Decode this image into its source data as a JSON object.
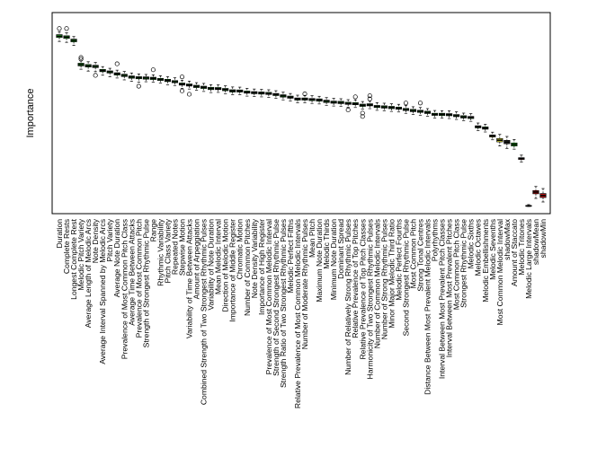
{
  "chart_data": {
    "type": "boxplot",
    "title": "",
    "xlabel": "",
    "ylabel": "Importance",
    "ylim": [
      0,
      100
    ],
    "grid": false,
    "legend": "none",
    "colors": {
      "confirmed": "#22dd22",
      "tentative": "#f2f23a",
      "rejected": "#cc1111",
      "shadow": "#333333"
    },
    "categories": [
      "Duration",
      "Complete Rests",
      "Longest Complete Rest",
      "Melodic Pitch Variety",
      "Average Length of Melodic Arcs",
      "Note Density",
      "Average Interval Spanned by Melodic Arcs",
      "Pitch Variety",
      "Average Note Duration",
      "Prevalence of Most Common Pitch Class",
      "Average Time Between Attacks",
      "Prevalence of Most Common Pitch",
      "Strength of Strongest Rhythmic Pulse",
      "Range",
      "Rhythmic Variability",
      "Pitch Class Variety",
      "Repeated Notes",
      "Stepwise Motion",
      "Variability of Time Between Attacks",
      "Amount of Arpeggiation",
      "Combined Strength of Two Strongest Rhythmic Pulses",
      "Variability of Note Duration",
      "Mean Melodic Interval",
      "Direction of Melodic Motion",
      "Importance of Middle Register",
      "Chromatic Motion",
      "Number of Common Pitches",
      "Note Density Variability",
      "Importance of High Register",
      "Prevalence of Most Common Melodic Interval",
      "Strength of Second Strongest Rhythmic Pulse",
      "Strength Ratio of Two Strongest Rhythmic Pulses",
      "Melodic Perfect Fifths",
      "Relative Prevalence of Most Common Melodic Intervals",
      "Number of Moderate Rhythmic Pulses",
      "Mean Pitch",
      "Maximum Note Duration",
      "Melodic Thirds",
      "Minimum Note Duration",
      "Dominant Spread",
      "Number of Relatively Strong Rhythmic Pulses",
      "Relative Prevalence of Top Pitches",
      "Relative Prevalence of Top Pitch Classes",
      "Harmonicity of Two Strongest Rhythmic Pulses",
      "Number of Common Melodic Intervals",
      "Number of Strong Rhythmic Pulses",
      "Minor Major Melodic Third Ratio",
      "Melodic Perfect Fourths",
      "Second Strongest Rhythmic Pulse",
      "Most Common Pitch",
      "Strong Tonal Centres",
      "Distance Between Most Prevalent Melodic Intervals",
      "Polyrhythms",
      "Interval Between Most Prevalent Pitch Classes",
      "Interval Between Most Prevalent Pitches",
      "Most Common Pitch Class",
      "Strongest Rhythmic Pulse",
      "Melodic Sixths",
      "Melodic Octaves",
      "Melodic Embellishments",
      "Melodic Sevenths",
      "Most Common Melodic Interval",
      "shadowMax",
      "Amount of Staccato",
      "Melodic Tritones",
      "Melodic Large Intervals",
      "shadowMean",
      "shadowMin"
    ],
    "status": [
      "confirmed",
      "confirmed",
      "confirmed",
      "confirmed",
      "confirmed",
      "confirmed",
      "confirmed",
      "confirmed",
      "confirmed",
      "confirmed",
      "confirmed",
      "confirmed",
      "confirmed",
      "confirmed",
      "confirmed",
      "confirmed",
      "confirmed",
      "confirmed",
      "confirmed",
      "confirmed",
      "confirmed",
      "confirmed",
      "confirmed",
      "confirmed",
      "confirmed",
      "confirmed",
      "confirmed",
      "confirmed",
      "confirmed",
      "confirmed",
      "confirmed",
      "confirmed",
      "confirmed",
      "confirmed",
      "confirmed",
      "confirmed",
      "confirmed",
      "confirmed",
      "confirmed",
      "confirmed",
      "confirmed",
      "confirmed",
      "confirmed",
      "confirmed",
      "confirmed",
      "confirmed",
      "confirmed",
      "confirmed",
      "confirmed",
      "confirmed",
      "confirmed",
      "confirmed",
      "confirmed",
      "confirmed",
      "confirmed",
      "confirmed",
      "confirmed",
      "confirmed",
      "confirmed",
      "confirmed",
      "tentative",
      "tentative",
      "shadow",
      "confirmed",
      "rejected",
      "rejected",
      "rejected",
      "rejected"
    ],
    "series": [
      {
        "boxes": [
          {
            "min": 88.4,
            "q1": 90.5,
            "median": 91.2,
            "q3": 92.0,
            "max": 93.5,
            "outliers": [
              95.3
            ]
          },
          {
            "min": 87.9,
            "q1": 90.0,
            "median": 90.7,
            "q3": 91.4,
            "max": 93.0,
            "outliers": [
              95.3
            ]
          },
          {
            "min": 86.2,
            "q1": 88.2,
            "median": 88.9,
            "q3": 89.6,
            "max": 91.0,
            "outliers": []
          },
          {
            "min": 73.5,
            "q1": 75.3,
            "median": 76.0,
            "q3": 76.7,
            "max": 78.0,
            "outliers": [
              79.8,
              78.9
            ]
          },
          {
            "min": 72.5,
            "q1": 74.7,
            "median": 75.3,
            "q3": 76.0,
            "max": 77.5,
            "outliers": []
          },
          {
            "min": 72.2,
            "q1": 74.4,
            "median": 75.0,
            "q3": 75.6,
            "max": 77.1,
            "outliers": [
              70.2
            ]
          },
          {
            "min": 70.3,
            "q1": 72.2,
            "median": 72.8,
            "q3": 73.4,
            "max": 74.9,
            "outliers": []
          },
          {
            "min": 69.5,
            "q1": 71.5,
            "median": 72.1,
            "q3": 72.6,
            "max": 74.0,
            "outliers": []
          },
          {
            "min": 68.8,
            "q1": 70.4,
            "median": 71.0,
            "q3": 71.6,
            "max": 73.0,
            "outliers": [
              76.4
            ]
          },
          {
            "min": 67.8,
            "q1": 69.6,
            "median": 70.2,
            "q3": 70.8,
            "max": 72.3,
            "outliers": []
          },
          {
            "min": 67.0,
            "q1": 68.7,
            "median": 69.3,
            "q3": 69.9,
            "max": 71.5,
            "outliers": []
          },
          {
            "min": 66.5,
            "q1": 68.4,
            "median": 69.0,
            "q3": 69.5,
            "max": 71.0,
            "outliers": [
              64.4
            ]
          },
          {
            "min": 66.8,
            "q1": 68.2,
            "median": 68.8,
            "q3": 69.4,
            "max": 70.7,
            "outliers": []
          },
          {
            "min": 66.6,
            "q1": 68.0,
            "median": 68.6,
            "q3": 69.2,
            "max": 70.5,
            "outliers": [
              73.2
            ]
          },
          {
            "min": 66.0,
            "q1": 67.5,
            "median": 68.0,
            "q3": 68.6,
            "max": 70.0,
            "outliers": []
          },
          {
            "min": 65.2,
            "q1": 66.9,
            "median": 67.5,
            "q3": 68.1,
            "max": 69.5,
            "outliers": []
          },
          {
            "min": 64.8,
            "q1": 66.3,
            "median": 66.8,
            "q3": 67.4,
            "max": 68.9,
            "outliers": []
          },
          {
            "min": 63.3,
            "q1": 65.0,
            "median": 65.5,
            "q3": 66.1,
            "max": 67.6,
            "outliers": [
              69.4,
              61.9
            ]
          },
          {
            "min": 62.9,
            "q1": 64.5,
            "median": 65.0,
            "q3": 65.6,
            "max": 67.1,
            "outliers": [
              60.1
            ]
          },
          {
            "min": 62.3,
            "q1": 63.7,
            "median": 64.3,
            "q3": 64.9,
            "max": 66.3,
            "outliers": []
          },
          {
            "min": 61.6,
            "q1": 63.2,
            "median": 63.8,
            "q3": 64.4,
            "max": 65.9,
            "outliers": []
          },
          {
            "min": 61.0,
            "q1": 62.6,
            "median": 63.2,
            "q3": 63.8,
            "max": 65.2,
            "outliers": []
          },
          {
            "min": 61.1,
            "q1": 62.6,
            "median": 63.1,
            "q3": 63.7,
            "max": 65.1,
            "outliers": []
          },
          {
            "min": 60.4,
            "q1": 62.0,
            "median": 62.6,
            "q3": 63.2,
            "max": 64.6,
            "outliers": []
          },
          {
            "min": 59.8,
            "q1": 61.3,
            "median": 61.9,
            "q3": 62.5,
            "max": 64.0,
            "outliers": []
          },
          {
            "min": 59.8,
            "q1": 61.3,
            "median": 61.8,
            "q3": 62.4,
            "max": 63.9,
            "outliers": []
          },
          {
            "min": 59.1,
            "q1": 60.7,
            "median": 61.2,
            "q3": 61.8,
            "max": 63.3,
            "outliers": []
          },
          {
            "min": 58.9,
            "q1": 60.4,
            "median": 61.0,
            "q3": 61.5,
            "max": 62.9,
            "outliers": []
          },
          {
            "min": 58.7,
            "q1": 60.2,
            "median": 60.8,
            "q3": 61.3,
            "max": 62.7,
            "outliers": []
          },
          {
            "min": 58.4,
            "q1": 60.0,
            "median": 60.5,
            "q3": 61.1,
            "max": 62.5,
            "outliers": []
          },
          {
            "min": 57.9,
            "q1": 59.4,
            "median": 60.0,
            "q3": 60.5,
            "max": 62.0,
            "outliers": []
          },
          {
            "min": 57.1,
            "q1": 58.6,
            "median": 59.2,
            "q3": 59.8,
            "max": 61.2,
            "outliers": []
          },
          {
            "min": 56.5,
            "q1": 58.0,
            "median": 58.5,
            "q3": 59.1,
            "max": 60.5,
            "outliers": []
          },
          {
            "min": 55.5,
            "q1": 57.0,
            "median": 57.6,
            "q3": 58.1,
            "max": 59.6,
            "outliers": []
          },
          {
            "min": 55.5,
            "q1": 57.0,
            "median": 57.5,
            "q3": 58.1,
            "max": 59.5,
            "outliers": [
              60.3
            ]
          },
          {
            "min": 55.2,
            "q1": 56.7,
            "median": 57.3,
            "q3": 57.8,
            "max": 59.3,
            "outliers": []
          },
          {
            "min": 54.9,
            "q1": 56.4,
            "median": 57.0,
            "q3": 57.6,
            "max": 59.0,
            "outliers": []
          },
          {
            "min": 54.2,
            "q1": 55.7,
            "median": 56.3,
            "q3": 56.9,
            "max": 58.3,
            "outliers": []
          },
          {
            "min": 53.8,
            "q1": 55.3,
            "median": 55.8,
            "q3": 56.4,
            "max": 57.9,
            "outliers": []
          },
          {
            "min": 53.7,
            "q1": 55.1,
            "median": 55.7,
            "q3": 56.3,
            "max": 57.7,
            "outliers": []
          },
          {
            "min": 53.1,
            "q1": 54.7,
            "median": 55.2,
            "q3": 55.8,
            "max": 57.2,
            "outliers": [
              51.7
            ]
          },
          {
            "min": 53.0,
            "q1": 54.5,
            "median": 55.0,
            "q3": 55.6,
            "max": 57.1,
            "outliers": [
              58.7
            ]
          },
          {
            "min": 52.1,
            "q1": 53.6,
            "median": 54.2,
            "q3": 54.8,
            "max": 56.2,
            "outliers": [
              48.2,
              50.0
            ]
          },
          {
            "min": 52.4,
            "q1": 53.9,
            "median": 54.4,
            "q3": 55.0,
            "max": 56.5,
            "outliers": [
              59.3,
              57.6
            ]
          },
          {
            "min": 51.5,
            "q1": 53.0,
            "median": 53.6,
            "q3": 54.1,
            "max": 55.6,
            "outliers": []
          },
          {
            "min": 51.3,
            "q1": 52.7,
            "median": 53.3,
            "q3": 53.9,
            "max": 55.3,
            "outliers": []
          },
          {
            "min": 50.9,
            "q1": 52.4,
            "median": 53.0,
            "q3": 53.6,
            "max": 55.0,
            "outliers": []
          },
          {
            "min": 50.6,
            "q1": 52.1,
            "median": 52.6,
            "q3": 53.2,
            "max": 54.7,
            "outliers": []
          },
          {
            "min": 49.9,
            "q1": 51.4,
            "median": 51.9,
            "q3": 52.5,
            "max": 54.0,
            "outliers": [
              55.4
            ]
          },
          {
            "min": 49.3,
            "q1": 50.8,
            "median": 51.4,
            "q3": 52.0,
            "max": 53.4,
            "outliers": []
          },
          {
            "min": 48.9,
            "q1": 50.4,
            "median": 51.0,
            "q3": 51.5,
            "max": 53.0,
            "outliers": [
              55.4
            ]
          },
          {
            "min": 48.3,
            "q1": 49.8,
            "median": 50.4,
            "q3": 51.0,
            "max": 52.4,
            "outliers": []
          },
          {
            "min": 47.3,
            "q1": 48.8,
            "median": 49.3,
            "q3": 49.9,
            "max": 51.4,
            "outliers": []
          },
          {
            "min": 47.3,
            "q1": 48.7,
            "median": 49.3,
            "q3": 49.9,
            "max": 51.3,
            "outliers": []
          },
          {
            "min": 47.1,
            "q1": 48.6,
            "median": 49.2,
            "q3": 49.7,
            "max": 51.2,
            "outliers": []
          },
          {
            "min": 46.6,
            "q1": 48.1,
            "median": 48.6,
            "q3": 49.2,
            "max": 50.7,
            "outliers": []
          },
          {
            "min": 46.0,
            "q1": 47.4,
            "median": 48.0,
            "q3": 48.6,
            "max": 50.0,
            "outliers": []
          },
          {
            "min": 45.6,
            "q1": 47.1,
            "median": 47.7,
            "q3": 48.2,
            "max": 49.7,
            "outliers": []
          },
          {
            "min": 40.6,
            "q1": 42.1,
            "median": 42.7,
            "q3": 43.2,
            "max": 44.7,
            "outliers": []
          },
          {
            "min": 39.9,
            "q1": 41.4,
            "median": 42.0,
            "q3": 42.6,
            "max": 44.0,
            "outliers": []
          },
          {
            "min": 35.7,
            "q1": 37.2,
            "median": 37.8,
            "q3": 38.3,
            "max": 39.8,
            "outliers": []
          },
          {
            "min": 32.4,
            "q1": 34.6,
            "median": 35.5,
            "q3": 36.4,
            "max": 38.6,
            "outliers": []
          },
          {
            "min": 31.1,
            "q1": 33.6,
            "median": 34.5,
            "q3": 35.4,
            "max": 37.5,
            "outliers": []
          },
          {
            "min": 30.7,
            "q1": 32.4,
            "median": 33.2,
            "q3": 34.0,
            "max": 35.9,
            "outliers": []
          },
          {
            "min": 23.8,
            "q1": 25.2,
            "median": 25.7,
            "q3": 26.1,
            "max": 27.5,
            "outliers": []
          },
          {
            "min": 0.0,
            "q1": 0.2,
            "median": 0.3,
            "q3": 0.5,
            "max": 1.0,
            "outliers": []
          },
          {
            "min": 4.3,
            "q1": 6.8,
            "median": 7.7,
            "q3": 8.5,
            "max": 10.7,
            "outliers": []
          },
          {
            "min": 2.4,
            "q1": 4.8,
            "median": 5.9,
            "q3": 6.9,
            "max": 9.6,
            "outliers": []
          }
        ]
      }
    ]
  }
}
